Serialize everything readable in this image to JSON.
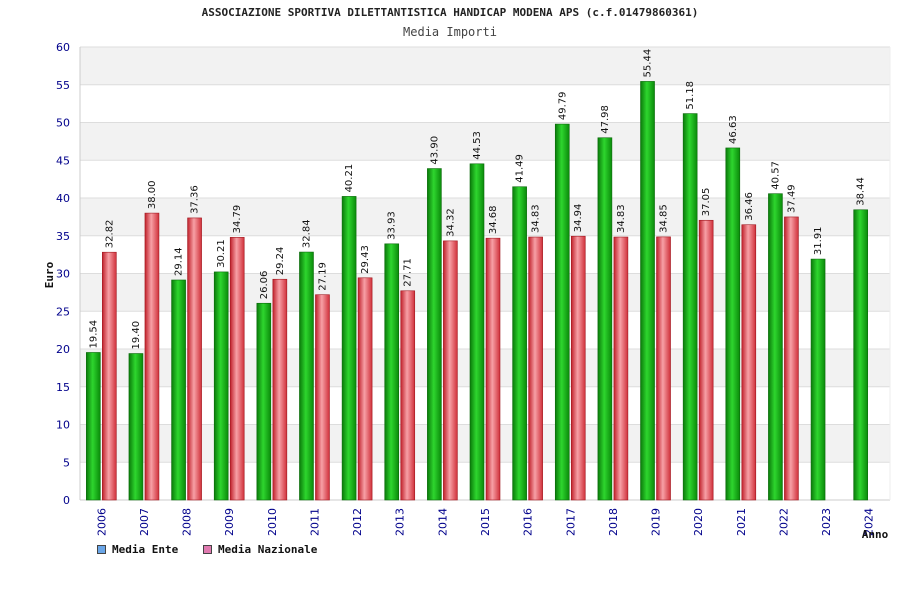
{
  "title": "ASSOCIAZIONE SPORTIVA DILETTANTISTICA HANDICAP MODENA APS (c.f.01479860361)",
  "subtitle": "Media Importi",
  "colors": {
    "ente_bar": "#11a811",
    "nazionale_bar": "#e0404a",
    "ente_legend": "#6aa6e8",
    "nazionale_legend": "#e07ab0",
    "axis_text": "#00008b",
    "band": "#f2f2f2"
  },
  "legend": [
    {
      "label": "Media Ente",
      "color": "#6aa6e8"
    },
    {
      "label": "Media Nazionale",
      "color": "#e07ab0"
    }
  ],
  "chart_data": {
    "type": "bar",
    "title": "ASSOCIAZIONE SPORTIVA DILETTANTISTICA HANDICAP MODENA APS (c.f.01479860361)",
    "subtitle": "Media Importi",
    "xlabel": "Anno",
    "ylabel": "Euro",
    "ylim": [
      0,
      60
    ],
    "yticks": [
      0,
      5,
      10,
      15,
      20,
      25,
      30,
      35,
      40,
      45,
      50,
      55,
      60
    ],
    "grid": true,
    "legend_position": "bottom-left",
    "categories": [
      "2006",
      "2007",
      "2008",
      "2009",
      "2010",
      "2011",
      "2012",
      "2013",
      "2014",
      "2015",
      "2016",
      "2017",
      "2018",
      "2019",
      "2020",
      "2021",
      "2022",
      "2023",
      "2024"
    ],
    "series": [
      {
        "name": "Media Ente",
        "values": [
          19.54,
          19.4,
          29.14,
          30.21,
          26.06,
          32.84,
          40.21,
          33.93,
          43.9,
          44.53,
          41.49,
          49.79,
          47.98,
          55.44,
          51.18,
          46.63,
          40.57,
          31.91,
          38.44
        ]
      },
      {
        "name": "Media Nazionale",
        "values": [
          32.82,
          38.0,
          37.36,
          34.79,
          29.24,
          27.19,
          29.43,
          27.71,
          34.32,
          34.68,
          34.83,
          34.94,
          34.83,
          34.85,
          37.05,
          36.46,
          37.49,
          null,
          null
        ]
      }
    ]
  }
}
